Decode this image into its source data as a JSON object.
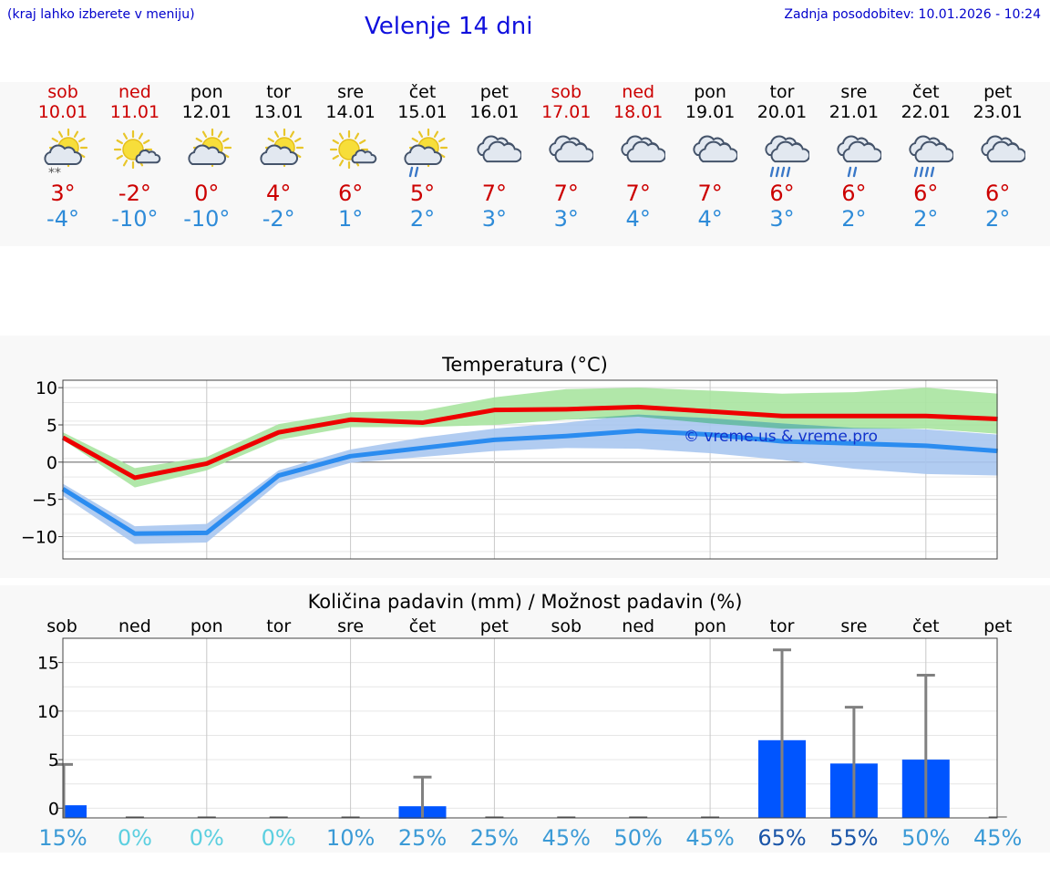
{
  "header": {
    "hint": "(kraj lahko izberete v meniju)",
    "title": "Velenje 14 dni",
    "updated": "Zadnja posodobitev: 10.01.2026 - 10:24"
  },
  "days": [
    {
      "name": "sob",
      "date": "10.01",
      "max": "3°",
      "min": "-4°",
      "icon": "partly-cloudy-snow-icon",
      "weekend": true
    },
    {
      "name": "ned",
      "date": "11.01",
      "max": "-2°",
      "min": "-10°",
      "icon": "sun-small-cloud-icon",
      "weekend": true
    },
    {
      "name": "pon",
      "date": "12.01",
      "max": "0°",
      "min": "-10°",
      "icon": "partly-cloudy-icon",
      "weekend": false
    },
    {
      "name": "tor",
      "date": "13.01",
      "max": "4°",
      "min": "-2°",
      "icon": "partly-cloudy-icon",
      "weekend": false
    },
    {
      "name": "sre",
      "date": "14.01",
      "max": "6°",
      "min": "1°",
      "icon": "sun-small-cloud-icon",
      "weekend": false
    },
    {
      "name": "čet",
      "date": "15.01",
      "max": "5°",
      "min": "2°",
      "icon": "partly-cloudy-rain-icon",
      "weekend": false
    },
    {
      "name": "pet",
      "date": "16.01",
      "max": "7°",
      "min": "3°",
      "icon": "cloudy-icon",
      "weekend": false
    },
    {
      "name": "sob",
      "date": "17.01",
      "max": "7°",
      "min": "3°",
      "icon": "cloudy-icon",
      "weekend": true
    },
    {
      "name": "ned",
      "date": "18.01",
      "max": "7°",
      "min": "4°",
      "icon": "cloudy-icon",
      "weekend": true
    },
    {
      "name": "pon",
      "date": "19.01",
      "max": "7°",
      "min": "4°",
      "icon": "cloudy-icon",
      "weekend": false
    },
    {
      "name": "tor",
      "date": "20.01",
      "max": "6°",
      "min": "3°",
      "icon": "cloudy-heavy-rain-icon",
      "weekend": false
    },
    {
      "name": "sre",
      "date": "21.01",
      "max": "6°",
      "min": "2°",
      "icon": "cloudy-rain-icon",
      "weekend": false
    },
    {
      "name": "čet",
      "date": "22.01",
      "max": "6°",
      "min": "2°",
      "icon": "cloudy-heavy-rain-icon",
      "weekend": false
    },
    {
      "name": "pet",
      "date": "23.01",
      "max": "6°",
      "min": "2°",
      "icon": "cloudy-icon",
      "weekend": false
    }
  ],
  "colors": {
    "max_line": "#ee0000",
    "max_band": "#a8e4a0",
    "min_line": "#2b8cf0",
    "min_band": "#a9c6f0",
    "overlap": "#5cb89a",
    "bar": "#0055ff",
    "whisker": "#808080"
  },
  "chart_data": [
    {
      "type": "line",
      "title": "Temperatura (°C)",
      "watermark": "© vreme.us & vreme.pro",
      "ylim": [
        -13,
        11
      ],
      "yticks": [
        10,
        5,
        0,
        -5,
        -10
      ],
      "ytick_labels": [
        "10",
        "5",
        "0",
        "−5",
        "−10"
      ],
      "x": [
        0,
        1,
        2,
        3,
        4,
        5,
        6,
        7,
        8,
        9,
        10,
        11,
        12,
        13
      ],
      "series": [
        {
          "name": "max",
          "values": [
            3.3,
            -2.1,
            -0.2,
            4.0,
            5.7,
            5.3,
            7.0,
            7.1,
            7.4,
            6.8,
            6.2,
            6.2,
            6.2,
            5.8
          ],
          "band_low": [
            3.0,
            -3.4,
            -1.1,
            3.0,
            4.7,
            4.7,
            5.0,
            5.7,
            6.1,
            5.2,
            4.5,
            4.5,
            4.5,
            3.8
          ],
          "band_high": [
            4.0,
            -0.8,
            0.7,
            5.1,
            6.7,
            6.9,
            8.7,
            9.8,
            10.0,
            9.6,
            9.2,
            9.4,
            10.0,
            9.2
          ]
        },
        {
          "name": "min",
          "values": [
            -3.6,
            -9.6,
            -9.5,
            -1.8,
            0.8,
            1.9,
            3.0,
            3.5,
            4.2,
            3.7,
            2.8,
            2.5,
            2.2,
            1.5
          ],
          "band_low": [
            -4.5,
            -11.0,
            -10.8,
            -2.8,
            -0.1,
            0.7,
            1.5,
            1.9,
            1.8,
            1.2,
            0.3,
            -0.9,
            -1.6,
            -1.8
          ],
          "band_high": [
            -2.9,
            -8.6,
            -8.3,
            -1.1,
            1.7,
            3.3,
            4.5,
            5.3,
            6.4,
            5.9,
            5.2,
            4.6,
            4.4,
            3.7
          ]
        }
      ]
    },
    {
      "type": "bar",
      "title": "Količina padavin (mm) / Možnost padavin (%)",
      "categories": [
        "sob",
        "ned",
        "pon",
        "tor",
        "sre",
        "čet",
        "pet",
        "sob",
        "ned",
        "pon",
        "tor",
        "sre",
        "čet",
        "pet"
      ],
      "values": [
        0.3,
        0,
        0,
        0,
        0,
        0.2,
        0,
        0,
        0,
        0,
        7.0,
        4.6,
        5.0,
        0
      ],
      "error_high": [
        4.5,
        0,
        0,
        0,
        0,
        3.2,
        0,
        0,
        0,
        0,
        16.3,
        10.4,
        13.7,
        0
      ],
      "probability": [
        "15%",
        "0%",
        "0%",
        "0%",
        "10%",
        "25%",
        "25%",
        "45%",
        "50%",
        "45%",
        "65%",
        "55%",
        "50%",
        "45%"
      ],
      "probability_values": [
        15,
        0,
        0,
        0,
        10,
        25,
        25,
        45,
        50,
        45,
        65,
        55,
        50,
        45
      ],
      "ylim": [
        -1,
        17.5
      ],
      "yticks": [
        15,
        10,
        5,
        0
      ],
      "ytick_labels": [
        "15",
        "10",
        "5",
        "0"
      ]
    }
  ]
}
